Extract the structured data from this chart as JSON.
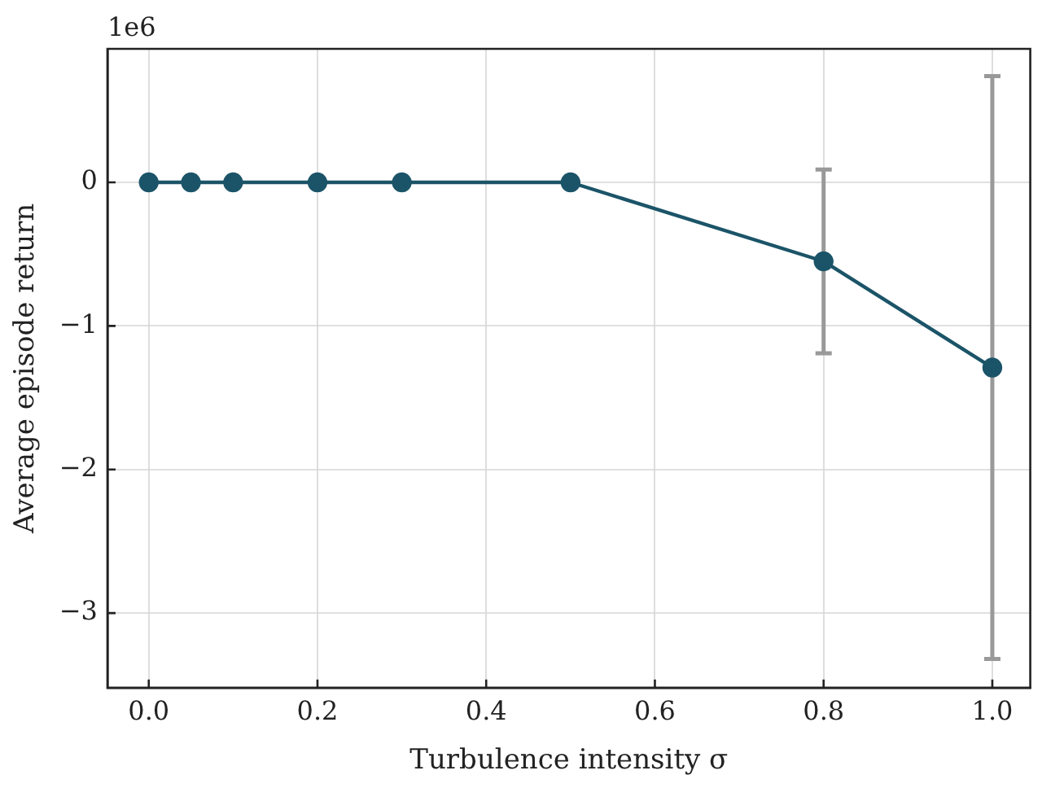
{
  "chart_data": {
    "type": "line",
    "xlabel": "Turbulence intensity σ",
    "ylabel": "Average episode return",
    "annotations": [
      "1e6"
    ],
    "x": [
      0,
      0.05,
      0.1,
      0.2,
      0.3,
      0.5,
      0.8,
      1.0
    ],
    "series": [
      {
        "color": "#1b5468",
        "values": [
          0,
          0,
          0,
          0,
          0,
          0,
          -0.55,
          -1.29
        ],
        "errors": [
          null,
          null,
          null,
          null,
          null,
          null,
          [
            -1.19,
            0.09
          ],
          [
            -3.32,
            0.74
          ]
        ]
      }
    ],
    "xlim": [
      -0.049,
      1.045
    ],
    "xticks": [
      {
        "value": 0,
        "label": "0.0"
      },
      {
        "value": 0.2,
        "label": "0.2"
      },
      {
        "value": 0.4,
        "label": "0.4"
      },
      {
        "value": 0.6,
        "label": "0.6"
      },
      {
        "value": 0.8,
        "label": "0.8"
      },
      {
        "value": 1.0,
        "label": "1.0"
      }
    ],
    "ylim": [
      -3.52,
      0.93
    ],
    "yticks": [
      {
        "value": -3,
        "label": "−3"
      },
      {
        "value": -2,
        "label": "−2"
      },
      {
        "value": -1,
        "label": "−1"
      },
      0
    ],
    "grid": true,
    "marker": "circle",
    "line_style": "solid",
    "legend": false
  }
}
